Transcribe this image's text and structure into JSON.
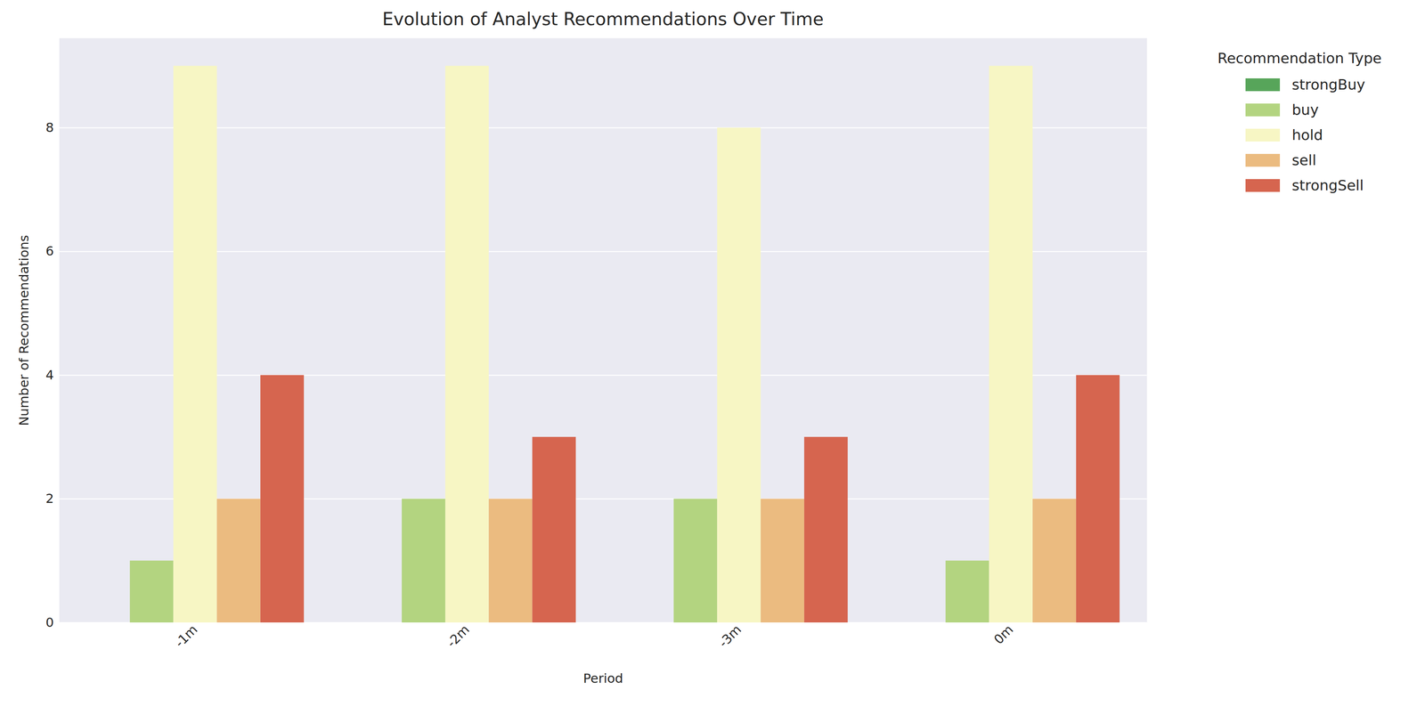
{
  "chart_data": {
    "type": "bar",
    "title": "Evolution of Analyst Recommendations Over Time",
    "x_label": "Period",
    "y_label": "Number of Recommendations",
    "legend_title": "Recommendation Type",
    "categories": [
      "-1m",
      "-2m",
      "-3m",
      "0m"
    ],
    "series": [
      {
        "name": "strongBuy",
        "color": "#57a55a",
        "values": [
          0,
          0,
          0,
          0
        ]
      },
      {
        "name": "buy",
        "color": "#b3d480",
        "values": [
          1,
          2,
          2,
          1
        ]
      },
      {
        "name": "hold",
        "color": "#f7f6c4",
        "values": [
          9,
          9,
          8,
          9
        ]
      },
      {
        "name": "sell",
        "color": "#ebbb80",
        "values": [
          2,
          2,
          2,
          2
        ]
      },
      {
        "name": "strongSell",
        "color": "#d6654f",
        "values": [
          4,
          3,
          3,
          4
        ]
      }
    ],
    "ylim": [
      0,
      9.45
    ],
    "yticks": [
      0,
      2,
      4,
      6,
      8
    ],
    "grid": true,
    "legend": "right"
  }
}
